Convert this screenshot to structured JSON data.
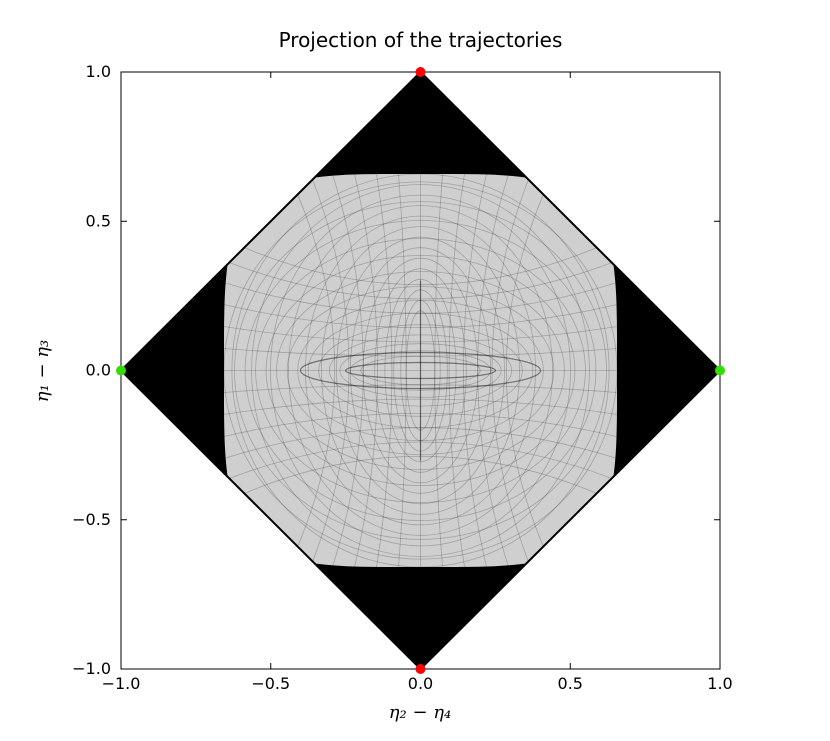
{
  "chart_data": {
    "type": "scatter",
    "title": "Projection of the trajectories",
    "xlabel": "η₂ − η₄",
    "ylabel": "η₁ − η₃",
    "xlim": [
      -1.0,
      1.0
    ],
    "ylim": [
      -1.0,
      1.0
    ],
    "x_ticks": [
      "−1.0",
      "−0.5",
      "0.0",
      "0.5",
      "1.0"
    ],
    "y_ticks": [
      "1.0",
      "0.5",
      "0.0",
      "−0.5",
      "−1.0"
    ],
    "grid": false,
    "boundary": {
      "shape": "diamond",
      "vertices": [
        [
          0,
          1
        ],
        [
          1,
          0
        ],
        [
          0,
          -1
        ],
        [
          -1,
          0
        ]
      ]
    },
    "series": [
      {
        "marker_color": "#ff0000",
        "x": [
          0.0,
          0.0
        ],
        "y": [
          1.0,
          -1.0
        ]
      },
      {
        "marker_color": "#33dd00",
        "x": [
          -1.0,
          1.0
        ],
        "y": [
          0.0,
          0.0
        ]
      }
    ]
  }
}
